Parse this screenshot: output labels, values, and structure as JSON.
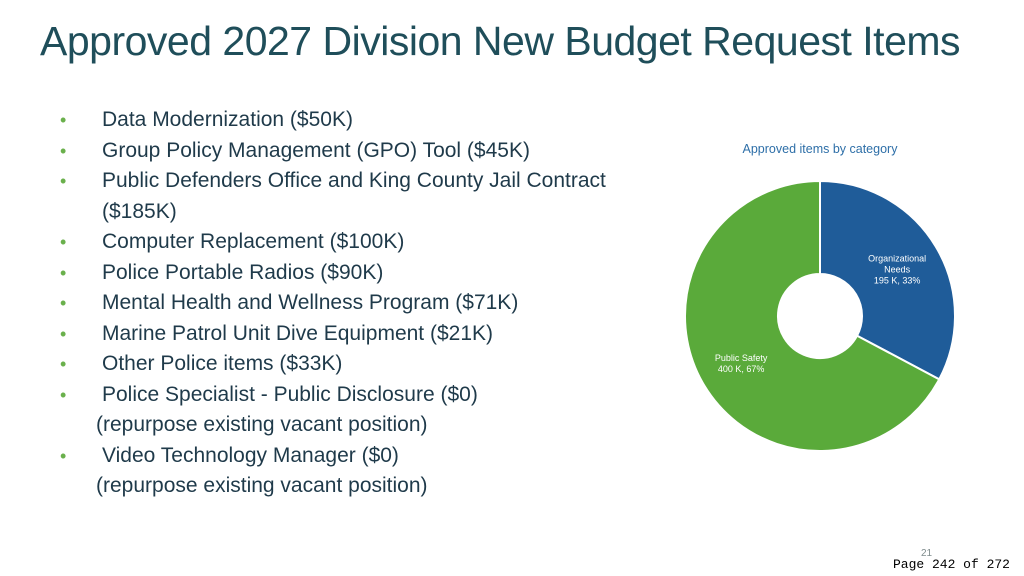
{
  "slide": {
    "title": "Approved 2027 Division New Budget Request Items",
    "bullets": [
      {
        "text": "Data Modernization ($50K)",
        "note": ""
      },
      {
        "text": "Group Policy Management (GPO) Tool ($45K)",
        "note": ""
      },
      {
        "text": "Public Defenders Office and King County Jail Contract ($185K)",
        "note": ""
      },
      {
        "text": "Computer Replacement ($100K)",
        "note": ""
      },
      {
        "text": "Police Portable Radios ($90K)",
        "note": ""
      },
      {
        "text": "Mental Health and Wellness Program ($71K)",
        "note": ""
      },
      {
        "text": "Marine Patrol Unit Dive Equipment ($21K)",
        "note": ""
      },
      {
        "text": "Other Police items ($33K)",
        "note": ""
      },
      {
        "text": "Police Specialist - Public Disclosure ($0)",
        "note": "(repurpose existing vacant position)"
      },
      {
        "text": "Video Technology Manager ($0)",
        "note": "(repurpose existing vacant position)"
      }
    ],
    "bullet_color": "#6ab04c",
    "slide_number": "21"
  },
  "chart_data": {
    "type": "pie",
    "donut": true,
    "title": "Approved items by category",
    "slices": [
      {
        "name": "Organizational Needs",
        "value": 195,
        "label_line1": "Organizational",
        "label_line2": "Needs",
        "label_value": "195 K, 33%",
        "color": "#1f5c99"
      },
      {
        "name": "Public Safety",
        "value": 400,
        "label_line1": "Public Safety",
        "label_line2": "",
        "label_value": "400 K, 67%",
        "color": "#5aaa3a"
      }
    ],
    "start_angle_deg": 0,
    "direction": "clockwise",
    "legend": "none"
  },
  "footer": {
    "page_text": "Page 242 of 272"
  }
}
